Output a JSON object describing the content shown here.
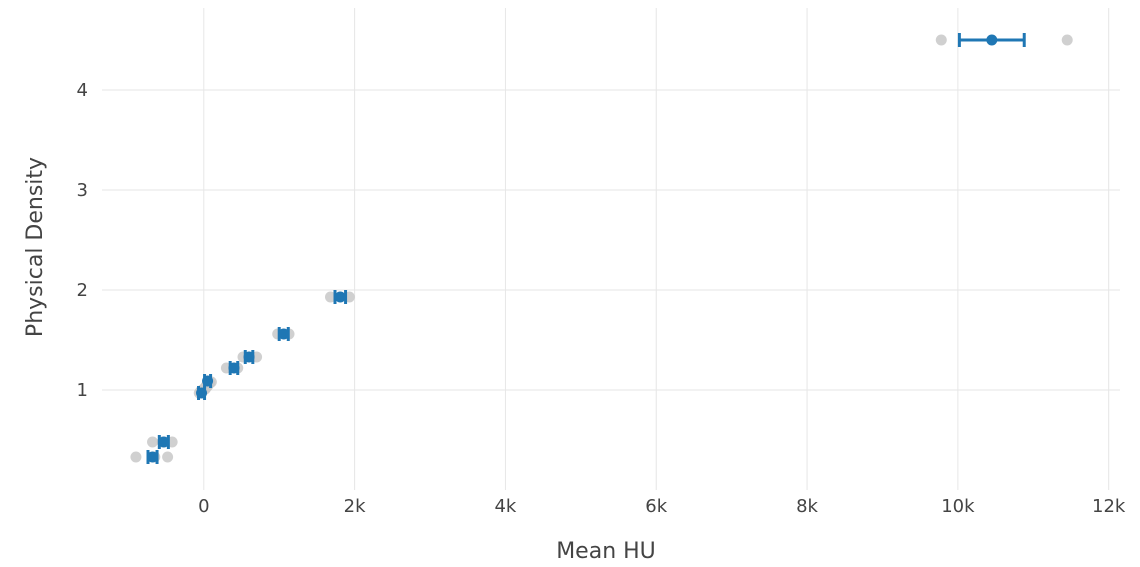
{
  "chart_data": {
    "type": "scatter",
    "title": "",
    "xlabel": "Mean HU",
    "ylabel": "Physical Density",
    "xlim": [
      -1350,
      12150
    ],
    "ylim": [
      0.0,
      4.82
    ],
    "x_ticks": [
      0,
      2000,
      4000,
      6000,
      8000,
      10000,
      12000
    ],
    "x_tick_labels": [
      "0",
      "2k",
      "4k",
      "6k",
      "8k",
      "10k",
      "12k"
    ],
    "y_ticks": [
      1,
      2,
      3,
      4
    ],
    "y_tick_labels": [
      "1",
      "2",
      "3",
      "4"
    ],
    "grid": true,
    "legend": "none",
    "colors": {
      "mean": "#1f77b4",
      "sample": "#c8c8c8",
      "grid": "#e6e6e6",
      "text": "#444444"
    },
    "series": [
      {
        "type": "samples",
        "points": [
          {
            "x": -900,
            "y": 0.33
          },
          {
            "x": -650,
            "y": 0.33
          },
          {
            "x": -480,
            "y": 0.33
          },
          {
            "x": -680,
            "y": 0.48
          },
          {
            "x": -550,
            "y": 0.48
          },
          {
            "x": -420,
            "y": 0.48
          },
          {
            "x": -60,
            "y": 0.97
          },
          {
            "x": -30,
            "y": 0.98
          },
          {
            "x": 0,
            "y": 1.0
          },
          {
            "x": 20,
            "y": 1.01
          },
          {
            "x": -20,
            "y": 1.0
          },
          {
            "x": 40,
            "y": 1.03
          },
          {
            "x": 10,
            "y": 1.02
          },
          {
            "x": 60,
            "y": 1.05
          },
          {
            "x": 80,
            "y": 1.07
          },
          {
            "x": 30,
            "y": 1.04
          },
          {
            "x": 100,
            "y": 1.08
          },
          {
            "x": -40,
            "y": 0.99
          },
          {
            "x": 300,
            "y": 1.22
          },
          {
            "x": 450,
            "y": 1.22
          },
          {
            "x": 520,
            "y": 1.33
          },
          {
            "x": 700,
            "y": 1.33
          },
          {
            "x": 980,
            "y": 1.56
          },
          {
            "x": 1130,
            "y": 1.56
          },
          {
            "x": 1680,
            "y": 1.93
          },
          {
            "x": 1930,
            "y": 1.93
          },
          {
            "x": 9780,
            "y": 4.5
          },
          {
            "x": 11450,
            "y": 4.5
          }
        ]
      },
      {
        "type": "mean",
        "points": [
          {
            "x": -680,
            "y": 0.33,
            "xerr": 60
          },
          {
            "x": -530,
            "y": 0.48,
            "xerr": 60
          },
          {
            "x": -30,
            "y": 0.97,
            "xerr": 40
          },
          {
            "x": 50,
            "y": 1.09,
            "xerr": 40
          },
          {
            "x": 400,
            "y": 1.22,
            "xerr": 50
          },
          {
            "x": 600,
            "y": 1.33,
            "xerr": 50
          },
          {
            "x": 1060,
            "y": 1.56,
            "xerr": 60
          },
          {
            "x": 1810,
            "y": 1.93,
            "xerr": 70
          },
          {
            "x": 10450,
            "y": 4.5,
            "xerr": 430
          }
        ]
      }
    ]
  }
}
